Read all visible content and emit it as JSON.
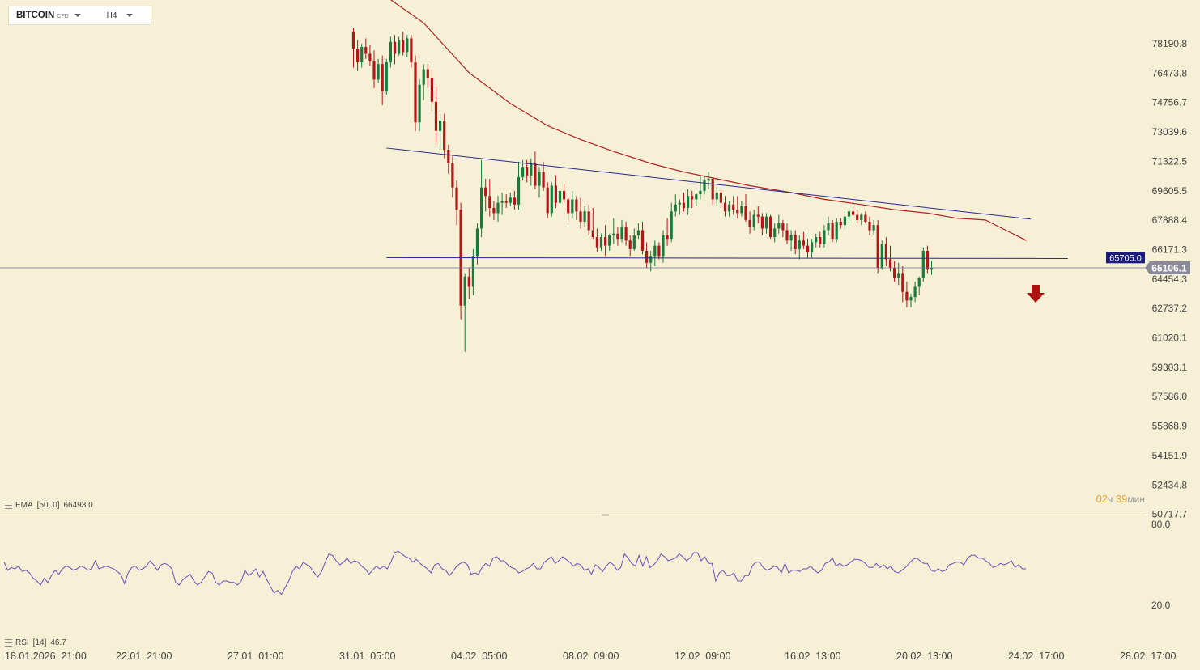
{
  "toolbar": {
    "symbol": "BITCOIN",
    "symbol_type": "CFD",
    "timeframe": "H4"
  },
  "ema_label": {
    "name": "EMA",
    "params": "[50, 0]",
    "value": "66493.0"
  },
  "rsi_label": {
    "name": "RSI",
    "params": "[14]",
    "value": "46.7"
  },
  "countdown": {
    "hours": "02",
    "hours_unit": "ч",
    "minutes": "39",
    "minutes_unit": "мин"
  },
  "price_axis": [
    "78190.8",
    "76473.8",
    "74756.7",
    "73039.6",
    "71322.5",
    "69605.5",
    "67888.4",
    "66171.3",
    "64454.3",
    "62737.2",
    "61020.1",
    "59303.1",
    "57586.0",
    "55868.9",
    "54151.9",
    "52434.8",
    "50717.7"
  ],
  "rsi_axis": [
    "80.0",
    "20.0"
  ],
  "time_axis": [
    "18.01.2026  21:00",
    "22.01  21:00",
    "27.01  01:00",
    "31.01  05:00",
    "04.02  05:00",
    "08.02  09:00",
    "12.02  09:00",
    "16.02  13:00",
    "20.02  13:00",
    "24.02  17:00",
    "28.02  17:00"
  ],
  "current_price": "65106.1",
  "level_price": "65705.0",
  "colors": {
    "background": "#f5f0d6",
    "bull": "#1a7a3a",
    "bear": "#b01818",
    "ema": "#b22020",
    "trendline": "#2a2a8a",
    "rsi": "#6a4fb8",
    "level_badge": "#1c1c7a",
    "price_badge": "#8a8a9a",
    "signal_arrow": "#b01010"
  },
  "chart_data": {
    "type": "candlestick",
    "timeframe": "H4",
    "series": [
      {
        "name": "EMA",
        "params": "[50, 0]",
        "last": 66493.0
      },
      {
        "name": "RSI",
        "params": "[14]",
        "last": 46.7
      }
    ],
    "price_range": [
      50717.7,
      78190.8
    ],
    "rsi_range": [
      20.0,
      80.0
    ],
    "current_price": 65106.1,
    "level": 65705.0,
    "candles": [
      [
        78900,
        79100,
        76800,
        77900
      ],
      [
        77900,
        78400,
        76600,
        77100
      ],
      [
        77100,
        78200,
        76800,
        78000
      ],
      [
        78000,
        78500,
        77300,
        77600
      ],
      [
        77600,
        78100,
        76900,
        77200
      ],
      [
        77200,
        77800,
        75600,
        76100
      ],
      [
        76100,
        77300,
        75900,
        77000
      ],
      [
        77000,
        77500,
        74600,
        75400
      ],
      [
        75400,
        77300,
        75200,
        77100
      ],
      [
        77100,
        78600,
        76800,
        78300
      ],
      [
        78300,
        78700,
        77000,
        77600
      ],
      [
        77600,
        78600,
        77500,
        78400
      ],
      [
        78400,
        78900,
        77500,
        77700
      ],
      [
        77700,
        78700,
        77400,
        78500
      ],
      [
        78500,
        78700,
        76800,
        77100
      ],
      [
        77100,
        77500,
        73100,
        73600
      ],
      [
        73600,
        76100,
        73100,
        75800
      ],
      [
        75800,
        77000,
        74900,
        76700
      ],
      [
        76700,
        77000,
        75600,
        76200
      ],
      [
        76200,
        76700,
        74300,
        74800
      ],
      [
        74800,
        75700,
        72300,
        73100
      ],
      [
        73100,
        74100,
        72000,
        73700
      ],
      [
        73700,
        74100,
        71500,
        72000
      ],
      [
        72000,
        72300,
        70600,
        71200
      ],
      [
        71200,
        71600,
        69200,
        69800
      ],
      [
        69800,
        70200,
        67600,
        68500
      ],
      [
        68500,
        68900,
        62100,
        62900
      ],
      [
        62900,
        64800,
        60200,
        64600
      ],
      [
        64600,
        65100,
        63300,
        64000
      ],
      [
        64000,
        66200,
        63500,
        65800
      ],
      [
        65800,
        67700,
        65300,
        67400
      ],
      [
        67400,
        71400,
        66900,
        69800
      ],
      [
        69800,
        70300,
        68400,
        69300
      ],
      [
        69300,
        70300,
        68100,
        68600
      ],
      [
        68600,
        69000,
        67900,
        68300
      ],
      [
        68300,
        69300,
        67800,
        68900
      ],
      [
        68900,
        69500,
        68200,
        69000
      ],
      [
        69000,
        69400,
        68600,
        68900
      ],
      [
        68900,
        69500,
        68700,
        69200
      ],
      [
        69200,
        69600,
        68500,
        68800
      ],
      [
        68800,
        71300,
        68500,
        70400
      ],
      [
        70400,
        71400,
        70200,
        71000
      ],
      [
        71000,
        71400,
        70100,
        70500
      ],
      [
        70500,
        71500,
        69900,
        71200
      ],
      [
        71200,
        71900,
        69700,
        69900
      ],
      [
        69900,
        71000,
        69200,
        70700
      ],
      [
        70700,
        71300,
        69600,
        69800
      ],
      [
        69800,
        70100,
        68000,
        68300
      ],
      [
        68300,
        70100,
        68100,
        69900
      ],
      [
        69900,
        70500,
        68600,
        68900
      ],
      [
        68900,
        69900,
        68700,
        69600
      ],
      [
        69600,
        70000,
        68900,
        69100
      ],
      [
        69100,
        69200,
        67800,
        68300
      ],
      [
        68300,
        69600,
        68000,
        69100
      ],
      [
        69100,
        69300,
        67900,
        68400
      ],
      [
        68400,
        69200,
        67400,
        67800
      ],
      [
        67800,
        68700,
        67500,
        68400
      ],
      [
        68400,
        68800,
        67000,
        67300
      ],
      [
        67300,
        68600,
        66800,
        66900
      ],
      [
        66900,
        67400,
        66000,
        66300
      ],
      [
        66300,
        67100,
        66100,
        66900
      ],
      [
        66900,
        67600,
        65800,
        66400
      ],
      [
        66400,
        67100,
        66100,
        67000
      ],
      [
        67000,
        68000,
        66500,
        67100
      ],
      [
        67100,
        67500,
        66400,
        66800
      ],
      [
        66800,
        67900,
        66600,
        67500
      ],
      [
        67500,
        67800,
        66400,
        66700
      ],
      [
        66700,
        67000,
        65800,
        66200
      ],
      [
        66200,
        67400,
        66100,
        67000
      ],
      [
        67000,
        67700,
        66800,
        67300
      ],
      [
        67300,
        67800,
        65900,
        66100
      ],
      [
        66100,
        66600,
        65100,
        65400
      ],
      [
        65400,
        66100,
        64900,
        65800
      ],
      [
        65800,
        66700,
        65200,
        66400
      ],
      [
        66400,
        66600,
        65600,
        65800
      ],
      [
        65800,
        67300,
        65400,
        67000
      ],
      [
        67000,
        68000,
        66400,
        66800
      ],
      [
        66800,
        68900,
        66600,
        68400
      ],
      [
        68400,
        69400,
        68100,
        68800
      ],
      [
        68800,
        69100,
        68200,
        68900
      ],
      [
        68900,
        69500,
        68400,
        68600
      ],
      [
        68600,
        69700,
        68200,
        69300
      ],
      [
        69300,
        69600,
        68600,
        69100
      ],
      [
        69100,
        69500,
        68700,
        69400
      ],
      [
        69400,
        70500,
        69100,
        69600
      ],
      [
        69600,
        70500,
        69400,
        70200
      ],
      [
        70200,
        70700,
        69700,
        70300
      ],
      [
        70300,
        70400,
        68800,
        69100
      ],
      [
        69100,
        69800,
        68700,
        69500
      ],
      [
        69500,
        69700,
        68600,
        68900
      ],
      [
        68900,
        69300,
        68100,
        68400
      ],
      [
        68400,
        69000,
        68100,
        68800
      ],
      [
        68800,
        69300,
        68200,
        68500
      ],
      [
        68500,
        69300,
        68000,
        68300
      ],
      [
        68300,
        69000,
        68100,
        68700
      ],
      [
        68700,
        69400,
        67800,
        67900
      ],
      [
        67900,
        68400,
        67100,
        67500
      ],
      [
        67500,
        68500,
        67300,
        68200
      ],
      [
        68200,
        68700,
        67700,
        68100
      ],
      [
        68100,
        68300,
        67000,
        67400
      ],
      [
        67400,
        68300,
        67100,
        68100
      ],
      [
        68100,
        68200,
        66800,
        66900
      ],
      [
        66900,
        67700,
        66600,
        67400
      ],
      [
        67400,
        68200,
        67100,
        67700
      ],
      [
        67700,
        67900,
        66900,
        67300
      ],
      [
        67300,
        67700,
        66500,
        66700
      ],
      [
        66700,
        67300,
        66100,
        67000
      ],
      [
        67000,
        67300,
        65900,
        66200
      ],
      [
        66200,
        67000,
        65600,
        66700
      ],
      [
        66700,
        67200,
        66200,
        66400
      ],
      [
        66400,
        66800,
        65700,
        66000
      ],
      [
        66000,
        66800,
        65700,
        66600
      ],
      [
        66600,
        67100,
        66300,
        66900
      ],
      [
        66900,
        67200,
        66300,
        66500
      ],
      [
        66500,
        67600,
        66300,
        67300
      ],
      [
        67300,
        68100,
        67000,
        67700
      ],
      [
        67700,
        67900,
        66600,
        66800
      ],
      [
        66800,
        68000,
        66600,
        67800
      ],
      [
        67800,
        68000,
        67400,
        67600
      ],
      [
        67600,
        68400,
        67400,
        68100
      ],
      [
        68100,
        68600,
        67700,
        68400
      ],
      [
        68400,
        68700,
        68000,
        68200
      ],
      [
        68200,
        68500,
        67700,
        67900
      ],
      [
        67900,
        68300,
        67600,
        68200
      ],
      [
        68200,
        68400,
        67700,
        67800
      ],
      [
        67800,
        68100,
        67000,
        67300
      ],
      [
        67300,
        67900,
        67000,
        67600
      ],
      [
        67600,
        67900,
        64800,
        65100
      ],
      [
        65100,
        66700,
        65000,
        66500
      ],
      [
        66500,
        66900,
        65200,
        65600
      ],
      [
        65600,
        66400,
        64900,
        65100
      ],
      [
        65100,
        65500,
        64300,
        64500
      ],
      [
        64500,
        65400,
        64100,
        64800
      ],
      [
        64800,
        65200,
        63100,
        63700
      ],
      [
        63700,
        64300,
        62800,
        63200
      ],
      [
        63200,
        63600,
        62800,
        63400
      ],
      [
        63400,
        64300,
        63100,
        64000
      ],
      [
        64000,
        64600,
        63500,
        64500
      ],
      [
        64500,
        66300,
        64300,
        66100
      ],
      [
        66100,
        66400,
        64800,
        65000
      ],
      [
        65000,
        65500,
        64700,
        65106
      ]
    ],
    "ema": [
      [
        7,
        81100
      ],
      [
        17,
        79400
      ],
      [
        28,
        76500
      ],
      [
        38,
        74700
      ],
      [
        47,
        73400
      ],
      [
        55,
        72600
      ],
      [
        63,
        71900
      ],
      [
        72,
        71200
      ],
      [
        80,
        70700
      ],
      [
        88,
        70300
      ],
      [
        96,
        69900
      ],
      [
        106,
        69500
      ],
      [
        114,
        69100
      ],
      [
        123,
        68800
      ],
      [
        131,
        68500
      ],
      [
        139,
        68300
      ],
      [
        146,
        68000
      ],
      [
        153,
        67900
      ],
      [
        158,
        67300
      ],
      [
        163,
        66700
      ]
    ],
    "trendlines": [
      {
        "name": "resistance",
        "from": [
          8,
          72100
        ],
        "to": [
          164,
          67950
        ]
      },
      {
        "name": "support",
        "from": [
          8,
          65700
        ],
        "to": [
          173,
          65650
        ]
      }
    ],
    "rsi": [
      52,
      46,
      48,
      47,
      49,
      45,
      46,
      44,
      40,
      38,
      35,
      40,
      37,
      42,
      46,
      43,
      47,
      49,
      48,
      46,
      47,
      49,
      48,
      46,
      47,
      53,
      47,
      48,
      49,
      48,
      47,
      45,
      43,
      36,
      44,
      48,
      49,
      46,
      47,
      49,
      53,
      50,
      46,
      50,
      51,
      50,
      47,
      37,
      35,
      39,
      41,
      43,
      38,
      35,
      37,
      41,
      45,
      44,
      37,
      35,
      38,
      38,
      37,
      37,
      35,
      38,
      46,
      42,
      44,
      47,
      41,
      45,
      39,
      34,
      29,
      31,
      28,
      33,
      38,
      45,
      49,
      47,
      52,
      50,
      48,
      44,
      41,
      45,
      52,
      58,
      57,
      53,
      50,
      52,
      55,
      51,
      53,
      52,
      49,
      47,
      43,
      46,
      49,
      47,
      49,
      47,
      52,
      59,
      60,
      58,
      56,
      55,
      52,
      54,
      51,
      49,
      47,
      44,
      50,
      51,
      47,
      46,
      42,
      45,
      49,
      51,
      52,
      50,
      43,
      44,
      43,
      48,
      51,
      49,
      55,
      56,
      53,
      53,
      50,
      48,
      47,
      44,
      45,
      47,
      48,
      51,
      47,
      47,
      52,
      54,
      56,
      51,
      53,
      56,
      54,
      52,
      49,
      51,
      50,
      46,
      47,
      43,
      50,
      48,
      45,
      49,
      52,
      50,
      46,
      48,
      58,
      55,
      51,
      49,
      57,
      49,
      56,
      48,
      50,
      53,
      58,
      56,
      53,
      54,
      55,
      58,
      56,
      53,
      55,
      59,
      59,
      53,
      56,
      51,
      51,
      38,
      44,
      46,
      42,
      42,
      44,
      38,
      38,
      42,
      42,
      49,
      52,
      52,
      48,
      46,
      47,
      49,
      48,
      44,
      51,
      44,
      46,
      46,
      45,
      47,
      47,
      49,
      46,
      44,
      46,
      51,
      52,
      55,
      49,
      51,
      49,
      50,
      52,
      54,
      54,
      53,
      51,
      48,
      48,
      51,
      48,
      50,
      47,
      49,
      45,
      44,
      46,
      48,
      51,
      54,
      55,
      53,
      51,
      51,
      46,
      45,
      47,
      45,
      46,
      50,
      51,
      52,
      52,
      50,
      55,
      57,
      57,
      55,
      55,
      53,
      51,
      48,
      49,
      51,
      50,
      51,
      53,
      48,
      50,
      47,
      47
    ]
  }
}
